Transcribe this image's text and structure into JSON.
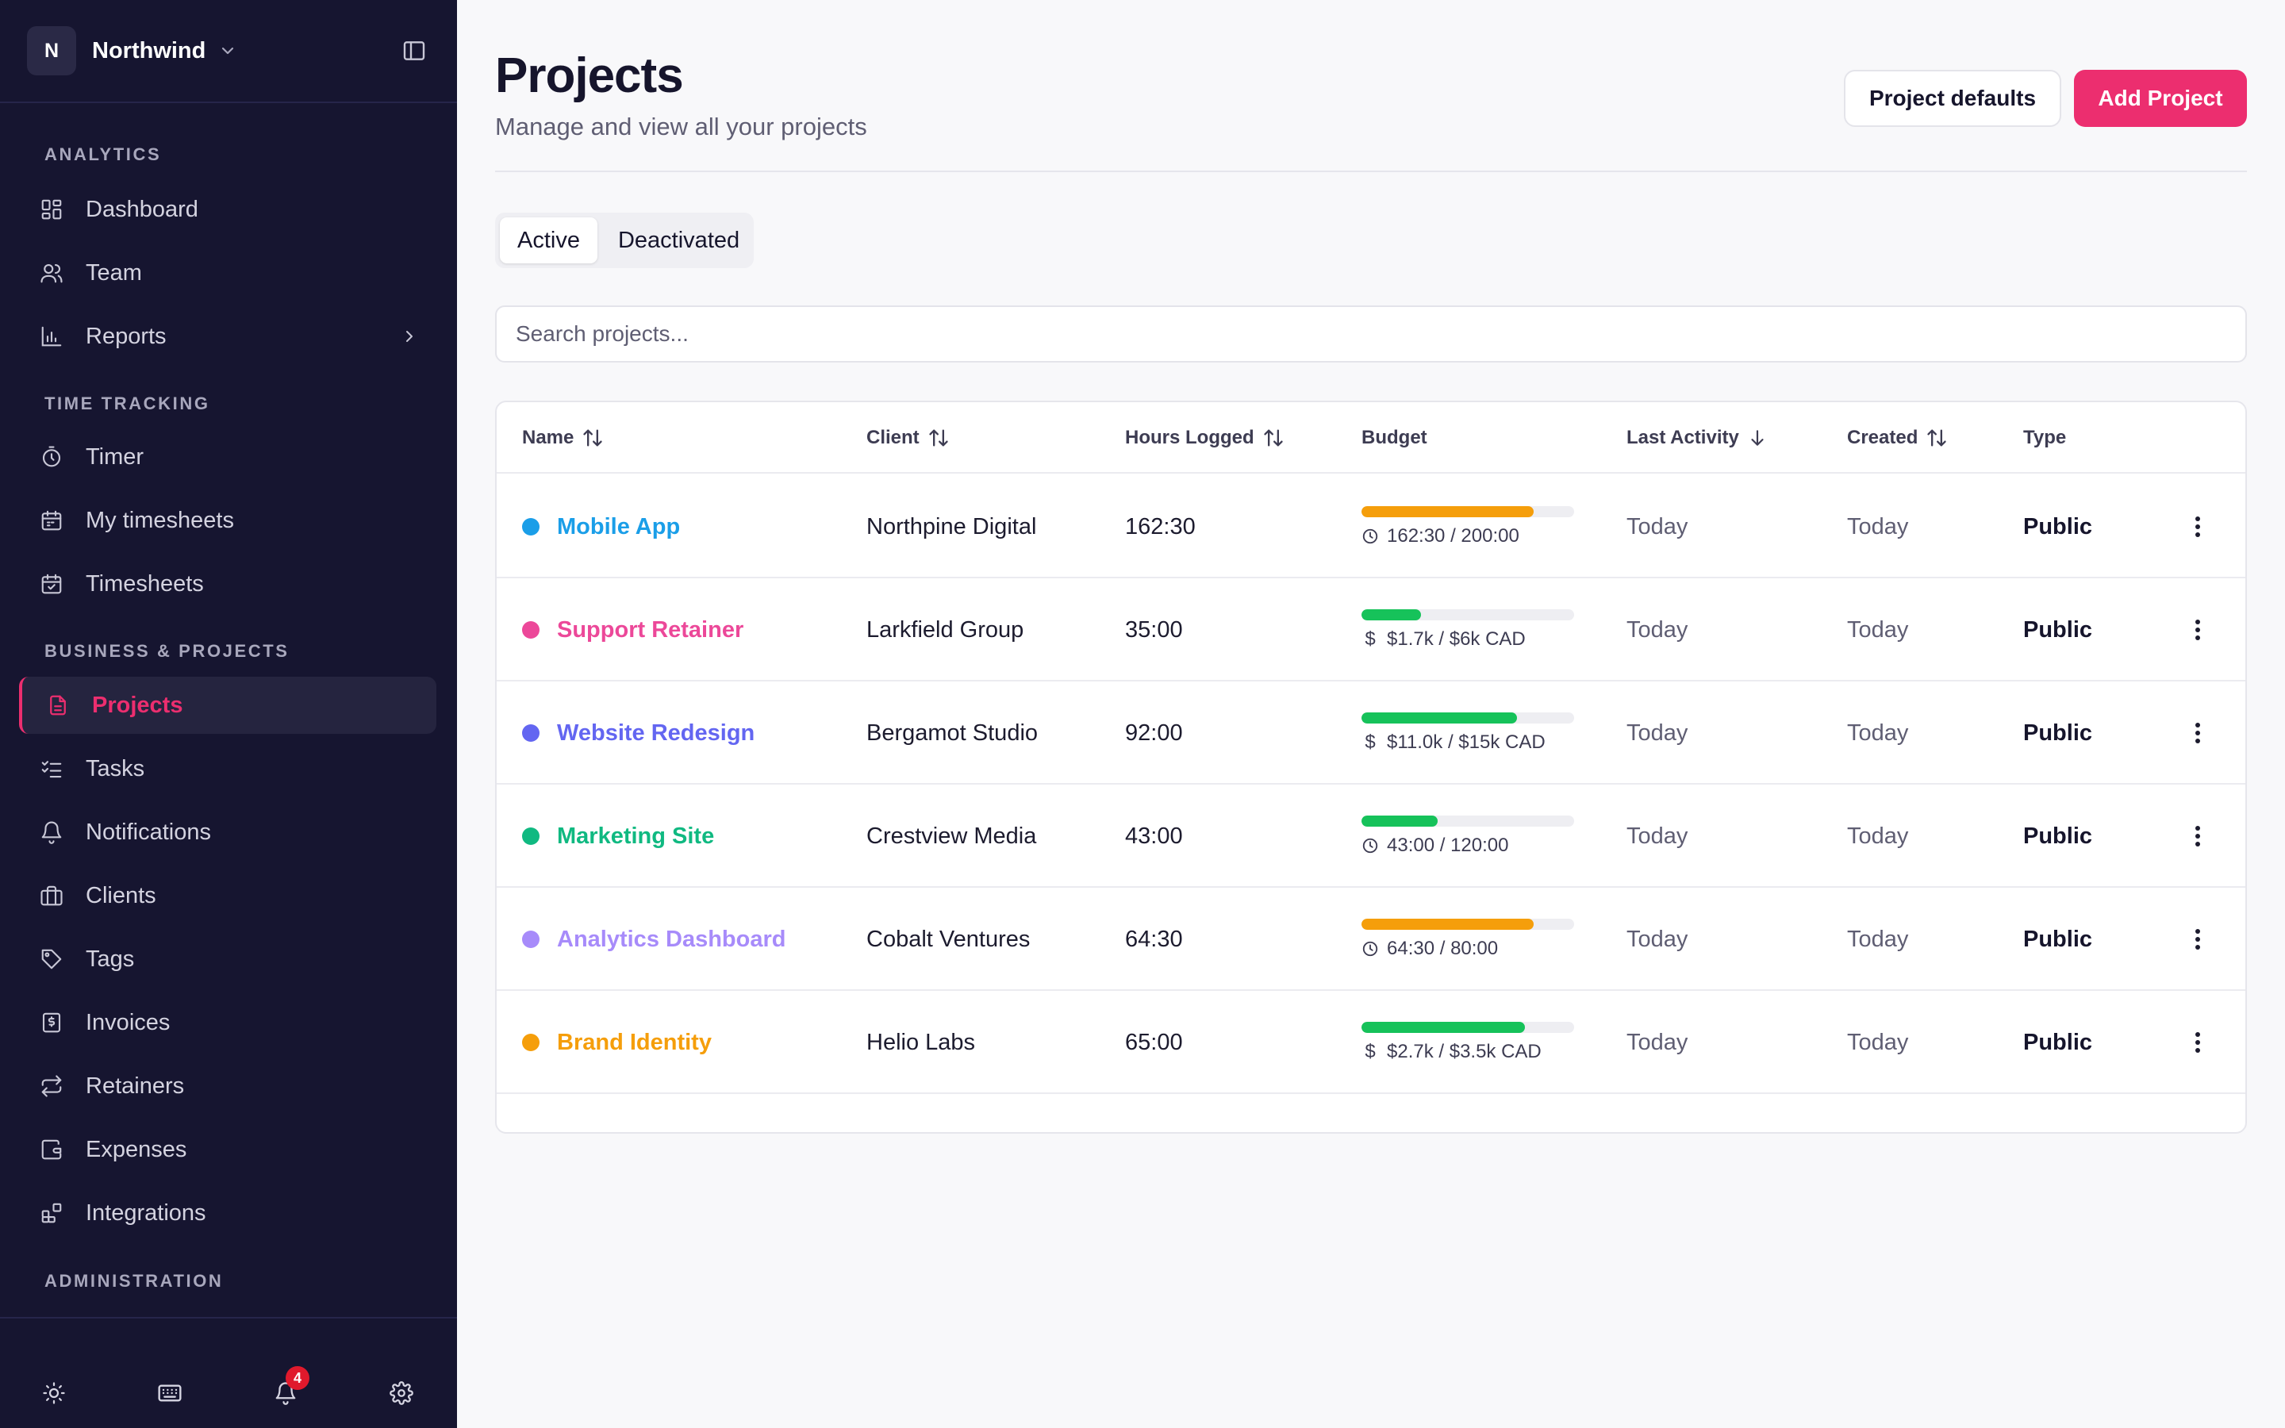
{
  "workspace": {
    "initial": "N",
    "name": "Northwind"
  },
  "sidebar": {
    "sections": {
      "analytics": "ANALYTICS",
      "time_tracking": "TIME TRACKING",
      "business": "BUSINESS & PROJECTS",
      "administration": "ADMINISTRATION"
    },
    "items": [
      {
        "label": "Dashboard",
        "icon": "dashboard-icon"
      },
      {
        "label": "Team",
        "icon": "users-icon"
      },
      {
        "label": "Reports",
        "icon": "bar-chart-icon"
      },
      {
        "label": "Timer",
        "icon": "stopwatch-icon"
      },
      {
        "label": "My timesheets",
        "icon": "calendar-icon"
      },
      {
        "label": "Timesheets",
        "icon": "calendar-check-icon"
      },
      {
        "label": "Projects",
        "icon": "file-icon",
        "active": true
      },
      {
        "label": "Tasks",
        "icon": "checklist-icon"
      },
      {
        "label": "Notifications",
        "icon": "bell-icon"
      },
      {
        "label": "Clients",
        "icon": "briefcase-icon"
      },
      {
        "label": "Tags",
        "icon": "tag-icon"
      },
      {
        "label": "Invoices",
        "icon": "invoice-icon"
      },
      {
        "label": "Retainers",
        "icon": "repeat-icon"
      },
      {
        "label": "Expenses",
        "icon": "wallet-icon"
      },
      {
        "label": "Integrations",
        "icon": "plugin-icon"
      }
    ],
    "footer": {
      "notification_count": "4"
    }
  },
  "header": {
    "title": "Projects",
    "subtitle": "Manage and view all your projects",
    "defaults_button": "Project defaults",
    "add_button": "Add Project"
  },
  "tabs": [
    "Active",
    "Deactivated"
  ],
  "search": {
    "placeholder": "Search projects..."
  },
  "table": {
    "columns": [
      "Name",
      "Client",
      "Hours Logged",
      "Budget",
      "Last Activity",
      "Created",
      "Type"
    ],
    "rows": [
      {
        "name": "Mobile App",
        "color": "#1a9ee8",
        "client": "Northpine Digital",
        "hours": "162:30",
        "budget_text": "162:30 / 200:00",
        "budget_kind": "time",
        "budget_fraction": 0.81,
        "bar_color": "#f59e0b",
        "last_activity": "Today",
        "created": "Today",
        "type": "Public"
      },
      {
        "name": "Support Retainer",
        "color": "#ec4899",
        "client": "Larkfield Group",
        "hours": "35:00",
        "budget_text": "$1.7k / $6k CAD",
        "budget_kind": "money",
        "budget_fraction": 0.28,
        "bar_color": "#16c25a",
        "last_activity": "Today",
        "created": "Today",
        "type": "Public"
      },
      {
        "name": "Website Redesign",
        "color": "#6366f1",
        "client": "Bergamot Studio",
        "hours": "92:00",
        "budget_text": "$11.0k / $15k CAD",
        "budget_kind": "money",
        "budget_fraction": 0.73,
        "bar_color": "#16c25a",
        "last_activity": "Today",
        "created": "Today",
        "type": "Public"
      },
      {
        "name": "Marketing Site",
        "color": "#10b981",
        "client": "Crestview Media",
        "hours": "43:00",
        "budget_text": "43:00 / 120:00",
        "budget_kind": "time",
        "budget_fraction": 0.36,
        "bar_color": "#16c25a",
        "last_activity": "Today",
        "created": "Today",
        "type": "Public"
      },
      {
        "name": "Analytics Dashboard",
        "color": "#a78bfa",
        "client": "Cobalt Ventures",
        "hours": "64:30",
        "budget_text": "64:30 / 80:00",
        "budget_kind": "time",
        "budget_fraction": 0.81,
        "bar_color": "#f59e0b",
        "last_activity": "Today",
        "created": "Today",
        "type": "Public"
      },
      {
        "name": "Brand Identity",
        "color": "#f59e0b",
        "client": "Helio Labs",
        "hours": "65:00",
        "budget_text": "$2.7k / $3.5k CAD",
        "budget_kind": "money",
        "budget_fraction": 0.77,
        "bar_color": "#16c25a",
        "last_activity": "Today",
        "created": "Today",
        "type": "Public"
      }
    ]
  },
  "colors": {
    "accent": "#ec2e6f",
    "sidebar_bg": "#161530"
  }
}
